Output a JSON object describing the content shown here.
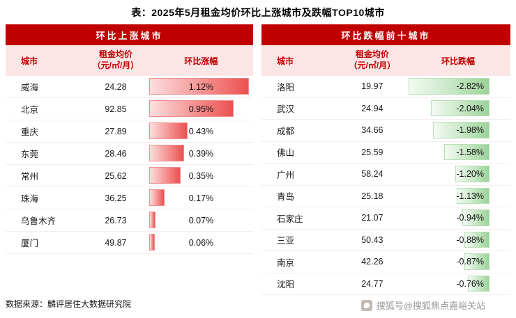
{
  "title": "表：2025年5月租金均价环比上涨城市及跌幅TOP10城市",
  "source": "数据来源：麟评居住大数据研究院",
  "watermark": "搜狐号@搜狐焦点嘉峪关站",
  "colors": {
    "band_red": "#c00000",
    "header_pink_bg": "#fbe5e5",
    "up_bar_red": "#ec5050",
    "down_bar_green": "#9cd29a"
  },
  "panels": {
    "up": {
      "band_title": "环比上涨城市",
      "col_city": "城市",
      "col_price_line1": "租金均价",
      "col_price_line2": "（元/㎡/月）",
      "col_change": "环比涨幅",
      "max_abs_change": 1.12,
      "rows": [
        {
          "city": "威海",
          "price": "24.28",
          "change": 1.12,
          "change_label": "1.12%"
        },
        {
          "city": "北京",
          "price": "92.85",
          "change": 0.95,
          "change_label": "0.95%"
        },
        {
          "city": "重庆",
          "price": "27.89",
          "change": 0.43,
          "change_label": "0.43%"
        },
        {
          "city": "东莞",
          "price": "28.46",
          "change": 0.39,
          "change_label": "0.39%"
        },
        {
          "city": "常州",
          "price": "25.62",
          "change": 0.35,
          "change_label": "0.35%"
        },
        {
          "city": "珠海",
          "price": "36.25",
          "change": 0.17,
          "change_label": "0.17%"
        },
        {
          "city": "乌鲁木齐",
          "price": "26.73",
          "change": 0.07,
          "change_label": "0.07%"
        },
        {
          "city": "厦门",
          "price": "49.87",
          "change": 0.06,
          "change_label": "0.06%"
        }
      ]
    },
    "down": {
      "band_title": "环比跌幅前十城市",
      "col_city": "城市",
      "col_price_line1": "租金均价",
      "col_price_line2": "（元/㎡/月）",
      "col_change": "环比跌幅",
      "max_abs_change": 2.82,
      "rows": [
        {
          "city": "洛阳",
          "price": "19.97",
          "change": -2.82,
          "change_label": "-2.82%"
        },
        {
          "city": "武汉",
          "price": "24.94",
          "change": -2.04,
          "change_label": "-2.04%"
        },
        {
          "city": "成都",
          "price": "34.66",
          "change": -1.98,
          "change_label": "-1.98%"
        },
        {
          "city": "佛山",
          "price": "25.59",
          "change": -1.58,
          "change_label": "-1.58%"
        },
        {
          "city": "广州",
          "price": "58.24",
          "change": -1.2,
          "change_label": "-1.20%"
        },
        {
          "city": "青岛",
          "price": "25.18",
          "change": -1.13,
          "change_label": "-1.13%"
        },
        {
          "city": "石家庄",
          "price": "21.07",
          "change": -0.94,
          "change_label": "-0.94%"
        },
        {
          "city": "三亚",
          "price": "50.43",
          "change": -0.88,
          "change_label": "-0.88%"
        },
        {
          "city": "南京",
          "price": "42.26",
          "change": -0.87,
          "change_label": "-0.87%"
        },
        {
          "city": "沈阳",
          "price": "24.77",
          "change": -0.76,
          "change_label": "-0.76%"
        }
      ]
    }
  },
  "chart_data": [
    {
      "type": "bar",
      "orientation": "horizontal",
      "title": "环比上涨城市",
      "categories": [
        "威海",
        "北京",
        "重庆",
        "东莞",
        "常州",
        "珠海",
        "乌鲁木齐",
        "厦门"
      ],
      "series": [
        {
          "name": "租金均价（元/㎡/月）",
          "values": [
            24.28,
            92.85,
            27.89,
            28.46,
            25.62,
            36.25,
            26.73,
            49.87
          ]
        },
        {
          "name": "环比涨幅(%)",
          "values": [
            1.12,
            0.95,
            0.43,
            0.39,
            0.35,
            0.17,
            0.07,
            0.06
          ]
        }
      ],
      "xlabel": "",
      "ylabel": "",
      "xlim": [
        0,
        1.12
      ],
      "legend_position": "none",
      "grid": false
    },
    {
      "type": "bar",
      "orientation": "horizontal",
      "title": "环比跌幅前十城市",
      "categories": [
        "洛阳",
        "武汉",
        "成都",
        "佛山",
        "广州",
        "青岛",
        "石家庄",
        "三亚",
        "南京",
        "沈阳"
      ],
      "series": [
        {
          "name": "租金均价（元/㎡/月）",
          "values": [
            19.97,
            24.94,
            34.66,
            25.59,
            58.24,
            25.18,
            21.07,
            50.43,
            42.26,
            24.77
          ]
        },
        {
          "name": "环比跌幅(%)",
          "values": [
            -2.82,
            -2.04,
            -1.98,
            -1.58,
            -1.2,
            -1.13,
            -0.94,
            -0.88,
            -0.87,
            -0.76
          ]
        }
      ],
      "xlabel": "",
      "ylabel": "",
      "xlim": [
        -2.82,
        0
      ],
      "legend_position": "none",
      "grid": false
    }
  ]
}
